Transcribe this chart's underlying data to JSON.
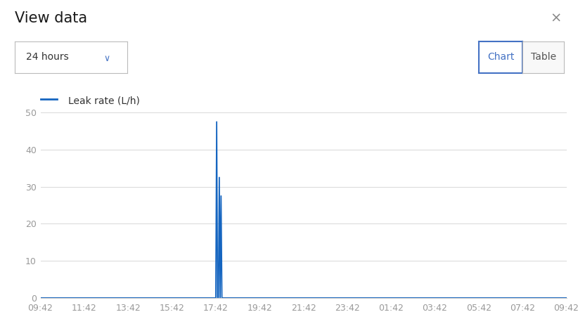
{
  "title": "View data",
  "close_symbol": "×",
  "dropdown_label": "24 hours",
  "dropdown_chevron": "∨",
  "button_chart": "Chart",
  "button_table": "Table",
  "legend_label": "Leak rate (L/h)",
  "line_color": "#1565C0",
  "background_color": "#ffffff",
  "grid_color": "#d8d8d8",
  "ylim": [
    0,
    50
  ],
  "yticks": [
    0,
    10,
    20,
    30,
    40,
    50
  ],
  "xtick_labels": [
    "09:42",
    "11:42",
    "13:42",
    "15:42",
    "17:42",
    "19:42",
    "21:42",
    "23:42",
    "01:42",
    "03:42",
    "05:42",
    "07:42",
    "09:42"
  ],
  "spike_points": [
    [
      0.0,
      0.0
    ],
    [
      4.0,
      0.0
    ],
    [
      4.02,
      47.5
    ],
    [
      4.04,
      0.0
    ],
    [
      4.06,
      0.0
    ],
    [
      4.08,
      32.5
    ],
    [
      4.1,
      0.0
    ],
    [
      4.12,
      27.5
    ],
    [
      4.14,
      0.0
    ],
    [
      12.0,
      0.0
    ]
  ]
}
